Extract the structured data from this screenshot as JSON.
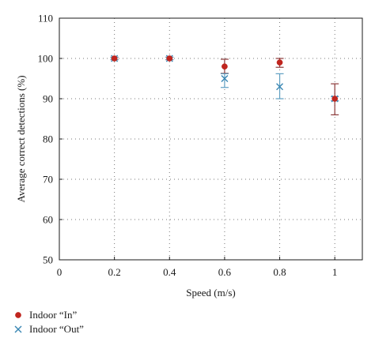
{
  "chart_data": {
    "type": "scatter",
    "xlabel": "Speed (m/s)",
    "ylabel": "Average correct detections (%)",
    "xlim": [
      0,
      1.1
    ],
    "ylim": [
      50,
      110
    ],
    "xticks": [
      0,
      0.2,
      0.4,
      0.6,
      0.8,
      1
    ],
    "xtick_labels": [
      "0",
      "0.2",
      "0.4",
      "0.6",
      "0.8",
      "1"
    ],
    "yticks": [
      50,
      60,
      70,
      80,
      90,
      100,
      110
    ],
    "ytick_labels": [
      "50",
      "60",
      "70",
      "80",
      "90",
      "100",
      "110"
    ],
    "grid": true,
    "legend_position": "bottom-left, below the plot",
    "series": [
      {
        "name": "Indoor “In”",
        "marker": "circle",
        "color": "#c0251e",
        "errorbar_color": "#8c3a3a",
        "x": [
          0.2,
          0.4,
          0.6,
          0.8,
          1.0
        ],
        "y": [
          100,
          100,
          98,
          99,
          90
        ],
        "err_low": [
          0.3,
          0.3,
          1.7,
          1.2,
          4.0
        ],
        "err_high": [
          0.3,
          0.3,
          1.8,
          1.0,
          3.7
        ]
      },
      {
        "name": "Indoor “Out”",
        "marker": "x",
        "color": "#3a87b4",
        "errorbar_color": "#5f9fc2",
        "x": [
          0.2,
          0.4,
          0.6,
          0.8,
          1.0
        ],
        "y": [
          100,
          100,
          95,
          93,
          90
        ],
        "err_low": [
          0.3,
          0.3,
          2.2,
          3.0,
          0.5
        ],
        "err_high": [
          0.3,
          0.3,
          1.2,
          3.2,
          0.5
        ]
      }
    ]
  }
}
